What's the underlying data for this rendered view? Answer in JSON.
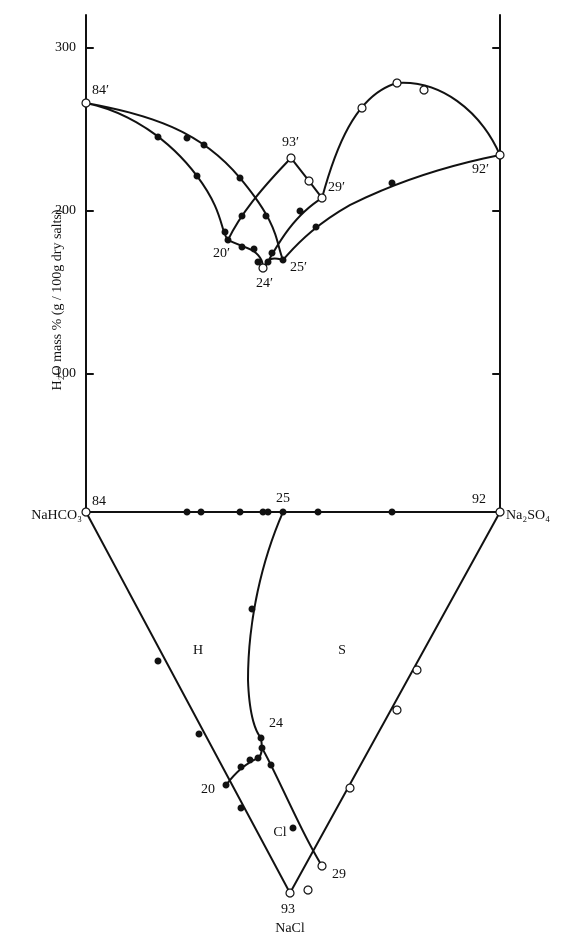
{
  "axis": {
    "label": "H₂O mass % (g / 100g dry salts)",
    "ticks": [
      "300",
      "200",
      "100"
    ]
  },
  "vertices": {
    "left": "NaHCO₃",
    "right": "Na₂SO₄",
    "bottom": "NaCl"
  },
  "upper_points": [
    "84′",
    "93′",
    "29′",
    "20′",
    "25′",
    "24′",
    "92′"
  ],
  "lower_points": [
    "84",
    "25",
    "92",
    "24",
    "20",
    "29",
    "93"
  ],
  "regions": [
    "H",
    "S",
    "Cl"
  ]
}
